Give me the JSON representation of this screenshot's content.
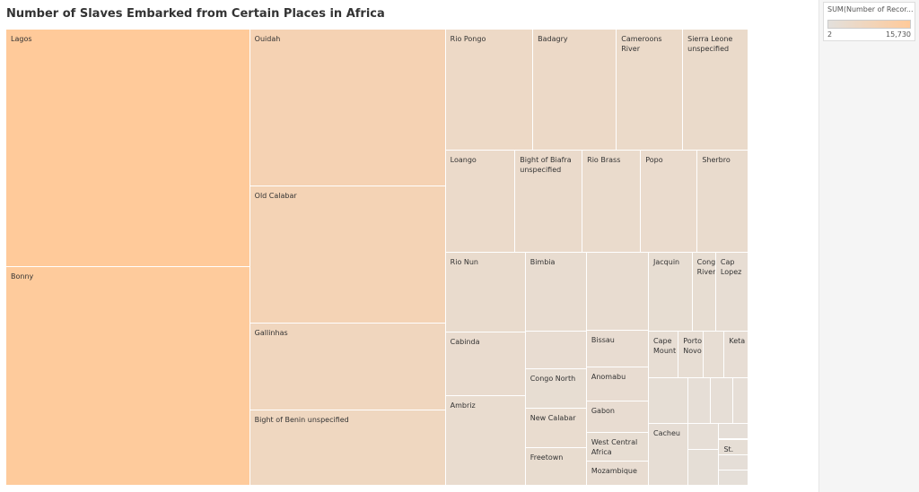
{
  "title": "Number of Slaves Embarked from Certain Places in Africa",
  "colors": {
    "low": "#e3e0dc",
    "high": "#ffca9a"
  },
  "legend": {
    "title": "SUM(Number of Recor...",
    "min_label": "2",
    "max_label": "15,730"
  },
  "chart_data": {
    "type": "treemap",
    "title": "Number of Slaves Embarked from Certain Places in Africa",
    "measure": "SUM(Number of Records)",
    "color_range": [
      2,
      15730
    ],
    "items": [
      {
        "label": "Lagos",
        "value": 15730
      },
      {
        "label": "Bonny",
        "value": 15100
      },
      {
        "label": "Ouidah",
        "value": 7200
      },
      {
        "label": "Old Calabar",
        "value": 6600
      },
      {
        "label": "Gallinhas",
        "value": 4200
      },
      {
        "label": "Bight of Benin unspecified",
        "value": 3700
      },
      {
        "label": "Rio Pongo",
        "value": 2600
      },
      {
        "label": "Badagry",
        "value": 2400
      },
      {
        "label": "Cameroons River",
        "value": 1900
      },
      {
        "label": "Sierra Leone unspecified",
        "value": 1750
      },
      {
        "label": "Loango",
        "value": 1800
      },
      {
        "label": "Bight of Biafra unspecified",
        "value": 1700
      },
      {
        "label": "Rio Brass",
        "value": 1500
      },
      {
        "label": "Popo",
        "value": 1400
      },
      {
        "label": "Sherbro",
        "value": 1300
      },
      {
        "label": "Rio Nun",
        "value": 1300
      },
      {
        "label": "Cabinda",
        "value": 1150
      },
      {
        "label": "Ambriz",
        "value": 1050
      },
      {
        "label": "Bimbia",
        "value": 900
      },
      {
        "label": "",
        "value": 800
      },
      {
        "label": "Congo North",
        "value": 700
      },
      {
        "label": "New Calabar",
        "value": 1100
      },
      {
        "label": "Freetown",
        "value": 1000
      },
      {
        "label": "",
        "value": 950
      },
      {
        "label": "Bissau",
        "value": 850
      },
      {
        "label": "Anomabu",
        "value": 800
      },
      {
        "label": "Gabon",
        "value": 780
      },
      {
        "label": "West Central Africa",
        "value": 730
      },
      {
        "label": "Mozambique",
        "value": 750
      },
      {
        "label": "Jacquin",
        "value": 700
      },
      {
        "label": "Congo River",
        "value": 650
      },
      {
        "label": "Cap Lopez",
        "value": 620
      },
      {
        "label": "Cape Mount",
        "value": 570
      },
      {
        "label": "Porto Novo",
        "value": 580
      },
      {
        "label": "",
        "value": 520
      },
      {
        "label": "Keta",
        "value": 500
      },
      {
        "label": "",
        "value": 380
      },
      {
        "label": "",
        "value": 330
      },
      {
        "label": "",
        "value": 300
      },
      {
        "label": "",
        "value": 290
      },
      {
        "label": "Cacheu",
        "value": 440
      },
      {
        "label": "",
        "value": 300
      },
      {
        "label": "",
        "value": 280
      },
      {
        "label": "",
        "value": 250
      },
      {
        "label": "St. Paul",
        "value": 340
      },
      {
        "label": "",
        "value": 200
      },
      {
        "label": "",
        "value": 180
      },
      {
        "label": "",
        "value": 150
      },
      {
        "label": "",
        "value": 120
      },
      {
        "label": "",
        "value": 100
      },
      {
        "label": "",
        "value": 80
      },
      {
        "label": "",
        "value": 60
      },
      {
        "label": "",
        "value": 40
      }
    ]
  }
}
